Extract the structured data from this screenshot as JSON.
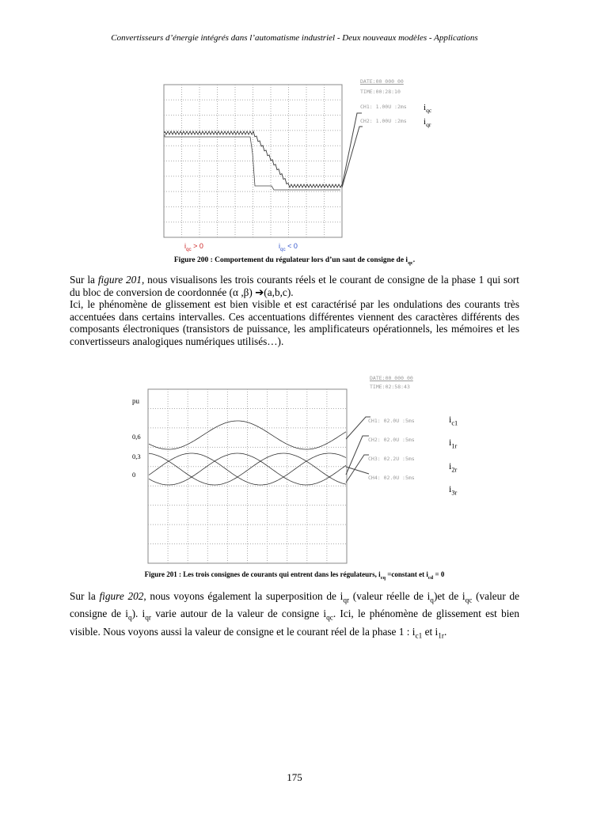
{
  "header": "Convertisseurs d’énergie intégrés dans l’automatisme industriel - Deux nouveaux modèles - Applications",
  "figure200": {
    "readout": {
      "date": "DATE:00 000 00",
      "time": "TIME:00:28:10",
      "ch1": "CH1: 1.00U :2ms",
      "ch2": "CH2: 1.00U :2ms"
    },
    "ch1_label": {
      "base": "i",
      "sub": "qc"
    },
    "ch2_label": {
      "base": "i",
      "sub": "qr"
    },
    "left_label": {
      "base": "i",
      "sub": "qc",
      "rest": " > 0",
      "color": "#cc2222"
    },
    "right_label": {
      "base": "i",
      "sub": "qc",
      "rest": " < 0",
      "color": "#3355cc"
    },
    "caption": {
      "text": "Figure 200 : Comportement du régulateur lors d’un saut de consigne de i",
      "sub": "qc",
      "end": "."
    }
  },
  "para1": {
    "a": "Sur la ",
    "fig": "figure 201",
    "b": ", nous visualisons les trois courants réels et le courant de consigne de la phase 1 qui sort du bloc de conversion de coordonnée (α ,β) ➔(a,b,c)."
  },
  "para2": "Ici, le phénomène de glissement est bien visible et est caractérisé par les ondulations des courants très accentuées dans certains intervalles. Ces accentuations différentes viennent des caractères différents des composants électroniques (transistors de puissance, les amplificateurs opérationnels, les mémoires et les convertisseurs analogiques numériques utilisés…).",
  "figure201": {
    "readout": {
      "date": "DATE:00 000 00",
      "time": "TIME:02:58:43",
      "ch1": "CH1: 02.0U :5ms",
      "ch2": "CH2: 02.0U :5ms",
      "ch3": "CH3: 02.2U :5ms",
      "ch4": "CH4: 02.0U :5ms"
    },
    "unit": "pu",
    "yticks": [
      "0,6",
      "0,3",
      "0"
    ],
    "labels": [
      {
        "base": "i",
        "sub": "c1"
      },
      {
        "base": "i",
        "sub": "1r"
      },
      {
        "base": "i",
        "sub": "2r"
      },
      {
        "base": "i",
        "sub": "3r"
      }
    ],
    "caption": {
      "a": "Figure 201 : Les trois consignes de courants qui entrent dans les régulateurs, i",
      "s1": "cq",
      "b": " =constant et i",
      "s2": "cd",
      "c": " = 0"
    }
  },
  "para3": {
    "a": "Sur la ",
    "fig": "figure 202",
    "b": ", nous voyons également la superposition de i",
    "s1": "qr",
    "c": " (valeur réelle de i",
    "s2": "q",
    "d": ")et de i",
    "s3": "qc",
    "e": " (valeur de consigne de i",
    "s4": "q",
    "f": "). i",
    "s5": "qr",
    "g": " varie autour de la valeur de consigne i",
    "s6": "qc",
    "h": ". Ici, le phénomène de glissement est bien visible. Nous voyons aussi la valeur de consigne et le courant réel de la phase 1 : i",
    "s7": "c1",
    "i": " et i",
    "s8": "1r",
    "j": "."
  },
  "page_number": "175"
}
